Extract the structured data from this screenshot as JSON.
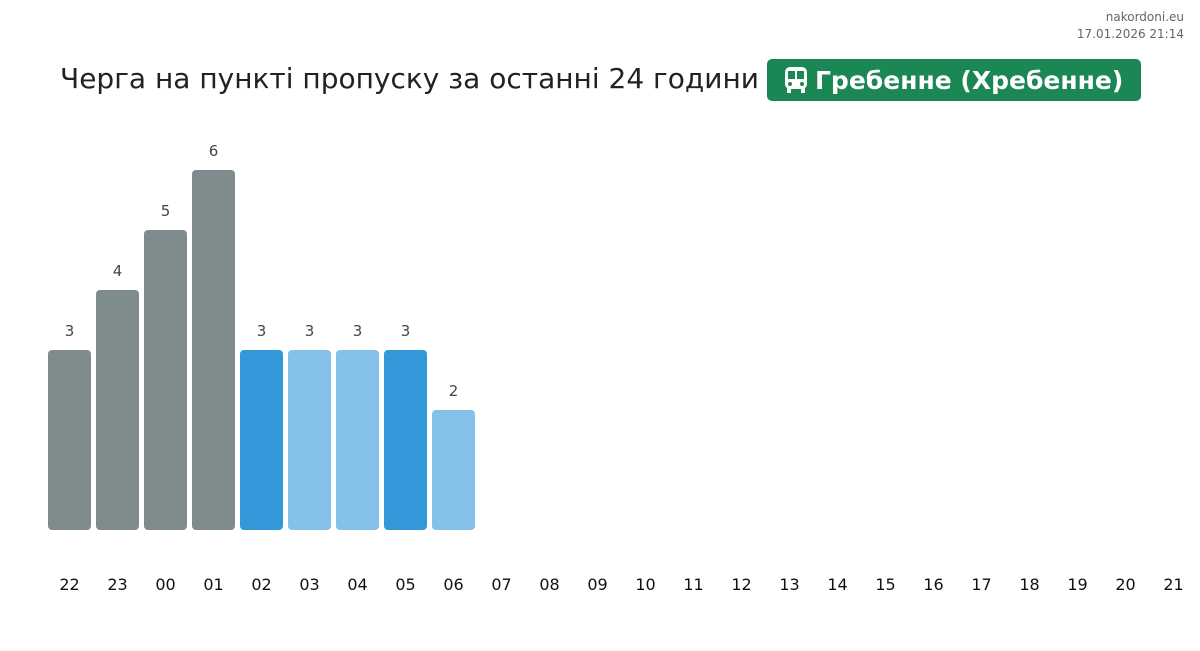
{
  "header": {
    "site": "nakordoni.eu",
    "timestamp": "17.01.2026 21:14",
    "title": "Черга на пункті пропуску за останні 24 години",
    "checkpoint": "Гребенне (Хребенне)",
    "checkpoint_icon": "bus-icon"
  },
  "colors": {
    "past": "#7f8c8d",
    "current_dark": "#3498db",
    "current_light": "#85c1e9",
    "badge": "#1a8754"
  },
  "chart_data": {
    "type": "bar",
    "categories": [
      "22",
      "23",
      "00",
      "01",
      "02",
      "03",
      "04",
      "05",
      "06",
      "07",
      "08",
      "09",
      "10",
      "11",
      "12",
      "13",
      "14",
      "15",
      "16",
      "17",
      "18",
      "19",
      "20",
      "21"
    ],
    "values": [
      3,
      4,
      5,
      6,
      3,
      3,
      3,
      3,
      2,
      null,
      null,
      null,
      null,
      null,
      null,
      null,
      null,
      null,
      null,
      null,
      null,
      null,
      null,
      null
    ],
    "bar_colors": [
      "past",
      "past",
      "past",
      "past",
      "current_dark",
      "current_light",
      "current_light",
      "current_dark",
      "current_light"
    ],
    "data_labels": true,
    "ylim": [
      0,
      6
    ],
    "grid": false
  }
}
